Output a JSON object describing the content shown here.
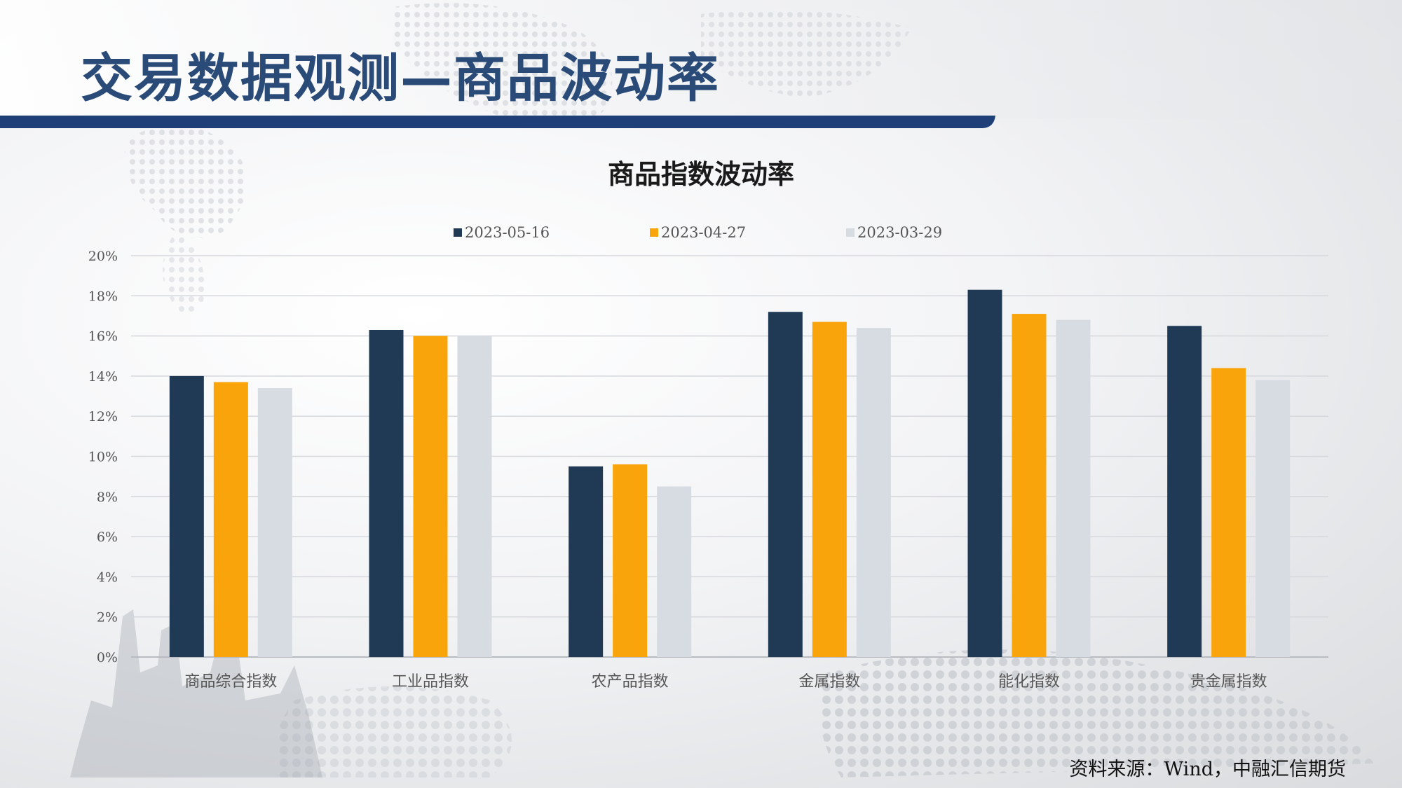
{
  "header": {
    "title": "交易数据观测—商品波动率",
    "accent_color": "#1e3f78"
  },
  "source_note": "资料来源：Wind，中融汇信期货",
  "chart_data": {
    "type": "bar",
    "title": "商品指数波动率",
    "categories": [
      "商品综合指数",
      "工业品指数",
      "农产品指数",
      "金属指数",
      "能化指数",
      "贵金属指数"
    ],
    "series": [
      {
        "name": "2023-05-16",
        "color": "#203a55",
        "values": [
          14.0,
          16.3,
          9.5,
          17.2,
          18.3,
          16.5
        ]
      },
      {
        "name": "2023-04-27",
        "color": "#f8a40a",
        "values": [
          13.7,
          16.0,
          9.6,
          16.7,
          17.1,
          14.4
        ]
      },
      {
        "name": "2023-03-29",
        "color": "#d7dce3",
        "values": [
          13.4,
          16.0,
          8.5,
          16.4,
          16.8,
          13.8
        ]
      }
    ],
    "ylim": [
      0,
      20
    ],
    "yticks": [
      "0%",
      "2%",
      "4%",
      "6%",
      "8%",
      "10%",
      "12%",
      "14%",
      "16%",
      "18%",
      "20%"
    ],
    "legend_position": "top",
    "grid": true
  }
}
